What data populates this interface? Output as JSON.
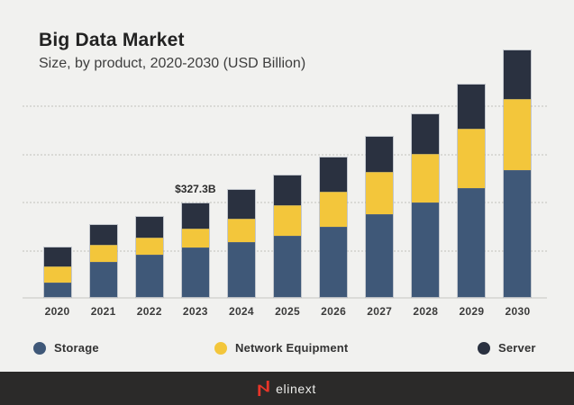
{
  "header": {
    "title": "Big Data Market",
    "subtitle": "Size, by product, 2020-2030 (USD Billion)"
  },
  "legend": [
    {
      "label": "Storage",
      "color": "#3f5878"
    },
    {
      "label": "Network Equipment",
      "color": "#f3c63b"
    },
    {
      "label": "Server",
      "color": "#2a3140"
    }
  ],
  "footer": {
    "brand": "elinext",
    "accent_color": "#e93529",
    "bg_color": "#2b2a29"
  },
  "colors": {
    "page_bg": "#f1f1ef",
    "grid": "#d9d9d5",
    "axis": "#dbdbd8"
  },
  "chart_data": {
    "type": "bar",
    "stacked": true,
    "title": "Big Data Market",
    "subtitle": "Size, by product, 2020-2030 (USD Billion)",
    "unit": "USD Billion",
    "categories": [
      "2020",
      "2021",
      "2022",
      "2023",
      "2024",
      "2025",
      "2026",
      "2027",
      "2028",
      "2029",
      "2030"
    ],
    "series": [
      {
        "name": "Storage",
        "color": "#3f5878",
        "values": [
          50,
          124,
          149,
          173,
          193,
          213,
          244,
          291,
          330,
          380,
          443
        ]
      },
      {
        "name": "Network Equipment",
        "color": "#f3c63b",
        "values": [
          58,
          58,
          59,
          65,
          80,
          107,
          123,
          145,
          170,
          208,
          248
        ]
      },
      {
        "name": "Server",
        "color": "#2a3140",
        "values": [
          65,
          70,
          72,
          89,
          100,
          105,
          121,
          124,
          140,
          155,
          170
        ]
      }
    ],
    "totals": [
      173,
      252,
      280,
      327.3,
      373,
      425,
      488,
      560,
      640,
      743,
      861
    ],
    "annotations": [
      {
        "category": "2023",
        "label": "$327.3B"
      }
    ],
    "ylim": [
      0,
      880
    ],
    "grid": "dotted-horizontal",
    "legend_position": "bottom"
  }
}
